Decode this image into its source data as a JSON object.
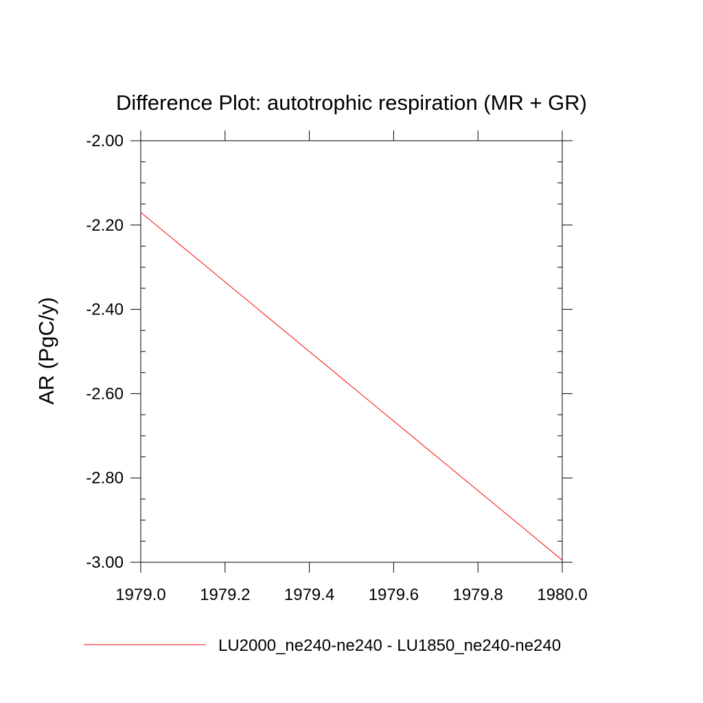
{
  "chart_data": {
    "type": "line",
    "title": "Difference Plot: autotrophic respiration (MR + GR)",
    "xlabel": "",
    "ylabel": "AR  (PgC/y)",
    "xlim": [
      1979.0,
      1980.0
    ],
    "ylim": [
      -3.0,
      -2.0
    ],
    "x_ticks": [
      1979.0,
      1979.2,
      1979.4,
      1979.6,
      1979.8,
      1980.0
    ],
    "x_tick_labels": [
      "1979.0",
      "1979.2",
      "1979.4",
      "1979.6",
      "1979.8",
      "1980.0"
    ],
    "y_ticks": [
      -2.0,
      -2.2,
      -2.4,
      -2.6,
      -2.8,
      -3.0
    ],
    "y_tick_labels": [
      "-2.00",
      "-2.20",
      "-2.40",
      "-2.60",
      "-2.80",
      "-3.00"
    ],
    "x_minor_step": 0.2,
    "y_minor_step": 0.05,
    "grid": false,
    "legend_position": "bottom",
    "series": [
      {
        "name": "LU2000_ne240-ne240 - LU1850_ne240-ne240",
        "color": "#ff0000",
        "x": [
          1979.0,
          1980.0
        ],
        "y": [
          -2.17,
          -2.995
        ]
      }
    ]
  }
}
